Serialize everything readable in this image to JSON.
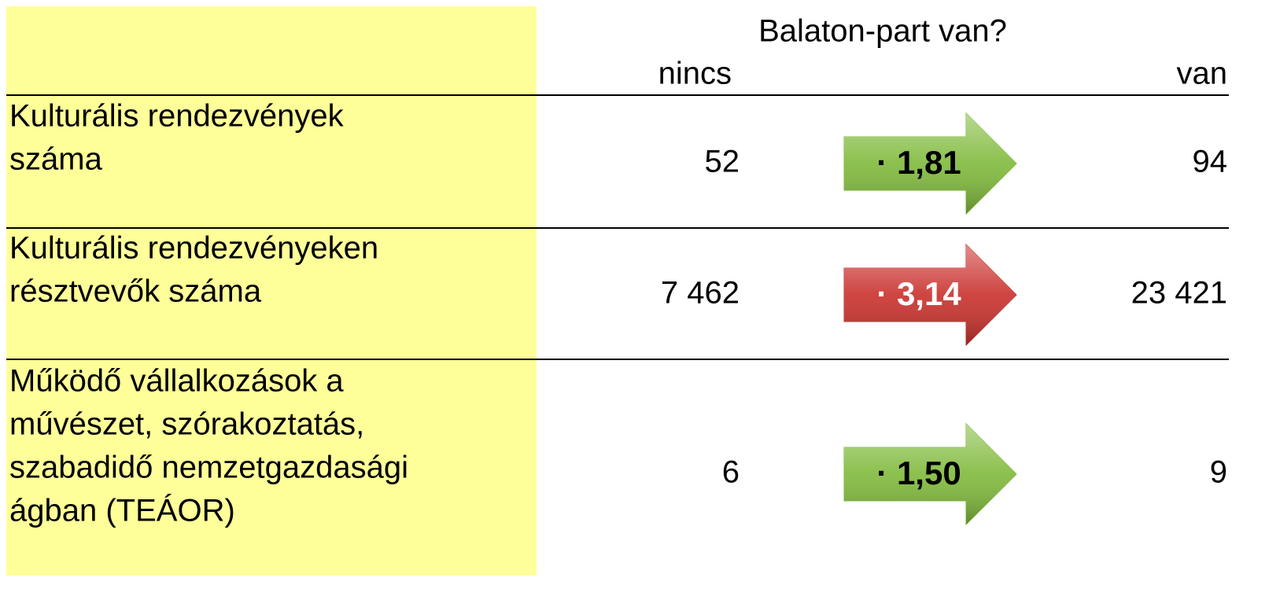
{
  "header": {
    "title": "Balaton-part van?",
    "col_without": "nincs",
    "col_with": "van"
  },
  "table": {
    "rows": [
      {
        "label": [
          "Kulturális rendezvények",
          "száma"
        ],
        "without": "52",
        "factor": "· 1,81",
        "with": "94",
        "color": "#7fb93a",
        "text_color": "#000000"
      },
      {
        "label": [
          "Kulturális rendezvényeken",
          "résztvevők száma"
        ],
        "without": "7 462",
        "factor": "· 3,14",
        "with": "23 421",
        "color": "#c9302c",
        "text_color": "#ffffff"
      },
      {
        "label": [
          "Működő vállalkozások a",
          "művészet, szórakoztatás,",
          "szabadidő nemzetgazdasági",
          "ágban (TEÁOR)"
        ],
        "without": "6",
        "factor": "· 1,50",
        "with": "9",
        "color": "#7fb93a",
        "text_color": "#000000"
      }
    ]
  }
}
